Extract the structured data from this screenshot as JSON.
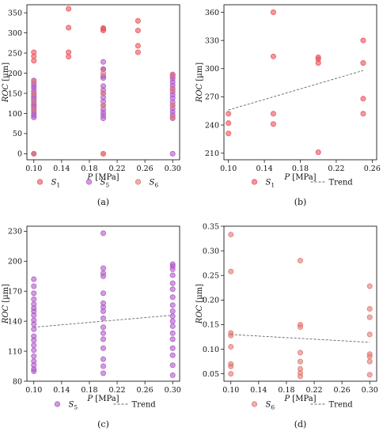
{
  "chart_data": [
    {
      "type": "scatter",
      "caption": "(a)",
      "xlabel": "P [MPa]",
      "ylabel": "ROC [µm]",
      "xlim": [
        0.09,
        0.31
      ],
      "ylim": [
        -15,
        370
      ],
      "xticks": [
        "0.10",
        "0.14",
        "0.18",
        "0.22",
        "0.26",
        "0.30"
      ],
      "yticks": [
        "0",
        "50",
        "100",
        "150",
        "200",
        "250",
        "300",
        "350"
      ],
      "xtick_values": [
        0.1,
        0.14,
        0.18,
        0.22,
        0.26,
        0.3
      ],
      "ytick_values": [
        0,
        50,
        100,
        150,
        200,
        250,
        300,
        350
      ],
      "legend": [
        {
          "label": "S",
          "sub": "1",
          "color": "#e9545c"
        },
        {
          "label": "S",
          "sub": "5",
          "color": "#b05ac8"
        },
        {
          "label": "S",
          "sub": "6",
          "color": "#e07a74"
        }
      ],
      "series": [
        {
          "name": "S1",
          "color": "#e9545c",
          "x": [
            0.1,
            0.1,
            0.1,
            0.1,
            0.15,
            0.15,
            0.15,
            0.15,
            0.2,
            0.2,
            0.2,
            0.2,
            0.2,
            0.25,
            0.25,
            0.25,
            0.25
          ],
          "y": [
            252,
            242,
            231,
            0,
            360,
            313,
            252,
            241,
            312,
            310,
            306,
            0,
            210,
            330,
            306,
            268,
            252
          ]
        },
        {
          "name": "S5",
          "color": "#b05ac8",
          "x": [
            0.1,
            0.1,
            0.1,
            0.1,
            0.1,
            0.1,
            0.1,
            0.1,
            0.1,
            0.1,
            0.1,
            0.1,
            0.1,
            0.1,
            0.1,
            0.1,
            0.1,
            0.1,
            0.2,
            0.2,
            0.2,
            0.2,
            0.2,
            0.2,
            0.2,
            0.2,
            0.2,
            0.2,
            0.2,
            0.2,
            0.2,
            0.2,
            0.3,
            0.3,
            0.3,
            0.3,
            0.3,
            0.3,
            0.3,
            0.3,
            0.3,
            0.3,
            0.3,
            0.3,
            0.3,
            0.3,
            0.3,
            0.3
          ],
          "y": [
            182,
            175,
            168,
            162,
            155,
            150,
            146,
            140,
            135,
            128,
            122,
            118,
            112,
            106,
            100,
            95,
            90,
            0,
            228,
            210,
            193,
            188,
            168,
            158,
            150,
            140,
            130,
            120,
            110,
            102,
            95,
            88,
            197,
            192,
            186,
            178,
            170,
            162,
            154,
            146,
            138,
            128,
            120,
            112,
            104,
            96,
            88,
            0
          ]
        },
        {
          "name": "S6",
          "color": "#e07a74",
          "x": [
            0.1,
            0.1,
            0.1,
            0.1,
            0.1,
            0.2,
            0.2,
            0.2,
            0.2,
            0.3,
            0.3,
            0.3,
            0.3
          ],
          "y": [
            180,
            150,
            130,
            110,
            0,
            200,
            150,
            120,
            0,
            195,
            160,
            120,
            90
          ]
        }
      ]
    },
    {
      "type": "scatter",
      "caption": "(b)",
      "xlabel": "P [MPa]",
      "ylabel": "ROC [µm]",
      "xlim": [
        0.095,
        0.265
      ],
      "ylim": [
        203,
        368
      ],
      "xticks": [
        "0.10",
        "0.14",
        "0.18",
        "0.22",
        "0.26"
      ],
      "yticks": [
        "210",
        "240",
        "270",
        "300",
        "330",
        "360"
      ],
      "xtick_values": [
        0.1,
        0.14,
        0.18,
        0.22,
        0.26
      ],
      "ytick_values": [
        210,
        240,
        270,
        300,
        330,
        360
      ],
      "legend": [
        {
          "label": "S",
          "sub": "1",
          "color": "#e9545c",
          "kind": "marker"
        },
        {
          "label": "Trend",
          "sub": "",
          "color": "#666666",
          "kind": "line"
        }
      ],
      "series": [
        {
          "name": "S1",
          "color": "#e9545c",
          "x": [
            0.1,
            0.1,
            0.1,
            0.15,
            0.15,
            0.15,
            0.15,
            0.2,
            0.2,
            0.2,
            0.2,
            0.25,
            0.25,
            0.25,
            0.25
          ],
          "y": [
            252,
            242,
            231,
            360,
            313,
            252,
            241,
            312,
            310,
            306,
            211,
            330,
            306,
            268,
            252
          ]
        }
      ],
      "trend": {
        "x": [
          0.1,
          0.25
        ],
        "y": [
          256,
          298
        ]
      }
    },
    {
      "type": "scatter",
      "caption": "(c)",
      "xlabel": "P [MPa]",
      "ylabel": "ROC [µm]",
      "xlim": [
        0.09,
        0.31
      ],
      "ylim": [
        80,
        235
      ],
      "xticks": [
        "0.10",
        "0.14",
        "0.18",
        "0.22",
        "0.26",
        "0.30"
      ],
      "yticks": [
        "80",
        "110",
        "140",
        "170",
        "200",
        "230"
      ],
      "xtick_values": [
        0.1,
        0.14,
        0.18,
        0.22,
        0.26,
        0.3
      ],
      "ytick_values": [
        80,
        110,
        140,
        170,
        200,
        230
      ],
      "legend": [
        {
          "label": "S",
          "sub": "5",
          "color": "#b05ac8",
          "kind": "marker"
        },
        {
          "label": "Trend",
          "sub": "",
          "color": "#666666",
          "kind": "line"
        }
      ],
      "series": [
        {
          "name": "S5",
          "color": "#b05ac8",
          "x": [
            0.1,
            0.1,
            0.1,
            0.1,
            0.1,
            0.1,
            0.1,
            0.1,
            0.1,
            0.1,
            0.1,
            0.1,
            0.1,
            0.1,
            0.1,
            0.1,
            0.1,
            0.1,
            0.1,
            0.1,
            0.2,
            0.2,
            0.2,
            0.2,
            0.2,
            0.2,
            0.2,
            0.2,
            0.2,
            0.2,
            0.2,
            0.2,
            0.2,
            0.2,
            0.2,
            0.2,
            0.3,
            0.3,
            0.3,
            0.3,
            0.3,
            0.3,
            0.3,
            0.3,
            0.3,
            0.3,
            0.3,
            0.3,
            0.3,
            0.3,
            0.3,
            0.3,
            0.3,
            0.3
          ],
          "y": [
            182,
            175,
            168,
            162,
            157,
            153,
            150,
            146,
            141,
            137,
            132,
            125,
            121,
            116,
            111,
            105,
            100,
            96,
            92,
            90,
            228,
            193,
            188,
            185,
            168,
            158,
            154,
            150,
            143,
            134,
            128,
            122,
            113,
            102,
            95,
            88,
            197,
            195,
            192,
            186,
            178,
            172,
            164,
            156,
            150,
            145,
            140,
            135,
            128,
            122,
            113,
            106,
            96,
            86
          ]
        }
      ],
      "trend": {
        "x": [
          0.1,
          0.3
        ],
        "y": [
          134,
          146
        ]
      }
    },
    {
      "type": "scatter",
      "caption": "(d)",
      "xlabel": "P [MPa]",
      "ylabel": "ROC [µm]",
      "xlim": [
        0.09,
        0.31
      ],
      "ylim": [
        0.035,
        0.35
      ],
      "xticks": [
        "0.10",
        "0.14",
        "0.18",
        "0.22",
        "0.26",
        "0.30"
      ],
      "yticks": [
        "0.05",
        "0.10",
        "0.15",
        "0.20",
        "0.25",
        "0.30",
        "0.35"
      ],
      "xtick_values": [
        0.1,
        0.14,
        0.18,
        0.22,
        0.26,
        0.3
      ],
      "ytick_values": [
        0.05,
        0.1,
        0.15,
        0.2,
        0.25,
        0.3,
        0.35
      ],
      "legend": [
        {
          "label": "S",
          "sub": "6",
          "color": "#e07a74",
          "kind": "marker"
        },
        {
          "label": "Trend",
          "sub": "",
          "color": "#666666",
          "kind": "line"
        }
      ],
      "series": [
        {
          "name": "S6",
          "color": "#e07a74",
          "x": [
            0.1,
            0.1,
            0.1,
            0.1,
            0.1,
            0.1,
            0.1,
            0.1,
            0.2,
            0.2,
            0.2,
            0.2,
            0.2,
            0.2,
            0.2,
            0.2,
            0.3,
            0.3,
            0.3,
            0.3,
            0.3,
            0.3,
            0.3,
            0.3
          ],
          "y": [
            0.333,
            0.258,
            0.133,
            0.128,
            0.105,
            0.07,
            0.065,
            0.05,
            0.28,
            0.15,
            0.145,
            0.093,
            0.075,
            0.06,
            0.052,
            0.045,
            0.228,
            0.182,
            0.165,
            0.13,
            0.09,
            0.085,
            0.075,
            0.048
          ]
        }
      ],
      "trend": {
        "x": [
          0.1,
          0.3
        ],
        "y": [
          0.13,
          0.114
        ]
      }
    }
  ]
}
